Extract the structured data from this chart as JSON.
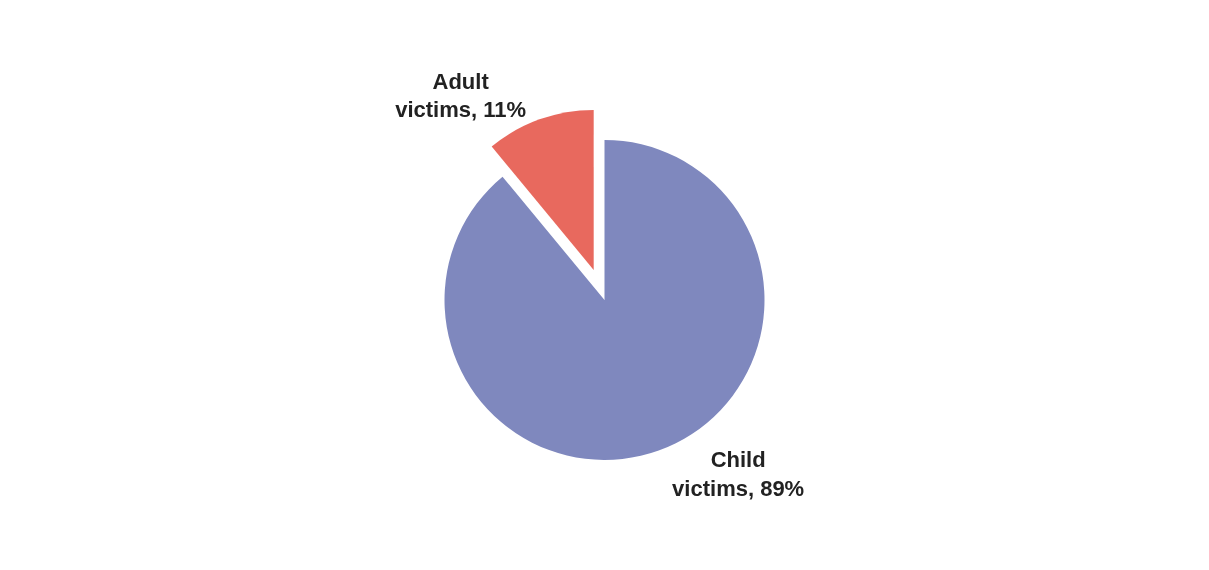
{
  "chart_data": {
    "type": "pie",
    "categories": [
      "Child victims",
      "Adult victims"
    ],
    "values": [
      89,
      11
    ],
    "colors": [
      "#7f88be",
      "#e8695e"
    ],
    "value_labels": [
      "89%",
      "11%"
    ],
    "legend": false
  }
}
